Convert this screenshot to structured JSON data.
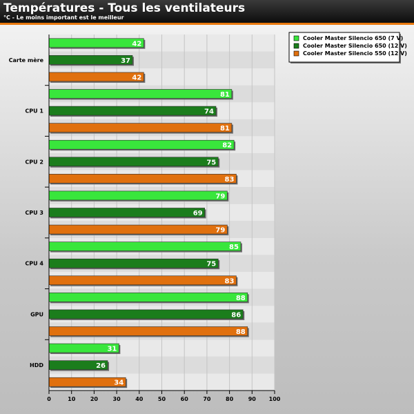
{
  "header": {
    "title": "Températures - Tous les ventilateurs",
    "subtitle": "°C - Le moins important est le meilleur"
  },
  "chart_data": {
    "type": "bar",
    "orientation": "horizontal",
    "title": "Températures - Tous les ventilateurs",
    "subtitle": "°C - Le moins important est le meilleur",
    "categories": [
      "Carte mère",
      "CPU 1",
      "CPU 2",
      "CPU 3",
      "CPU 4",
      "GPU",
      "HDD"
    ],
    "series": [
      {
        "name": "Cooler Master Silencio 650 (7 V)",
        "color": "#39e63c",
        "values": [
          42,
          81,
          82,
          79,
          85,
          88,
          31
        ]
      },
      {
        "name": "Cooler Master Silencio 650 (12 V)",
        "color": "#1b7d1c",
        "values": [
          37,
          74,
          75,
          69,
          75,
          86,
          26
        ]
      },
      {
        "name": "Cooler Master Silencio 550 (12 V)",
        "color": "#e0700e",
        "values": [
          42,
          81,
          83,
          79,
          83,
          88,
          34
        ]
      }
    ],
    "xlim": [
      0,
      100
    ],
    "xticks": [
      0,
      10,
      20,
      30,
      40,
      50,
      60,
      70,
      80,
      90,
      100
    ],
    "grid": true,
    "legend_position": "top-right"
  }
}
